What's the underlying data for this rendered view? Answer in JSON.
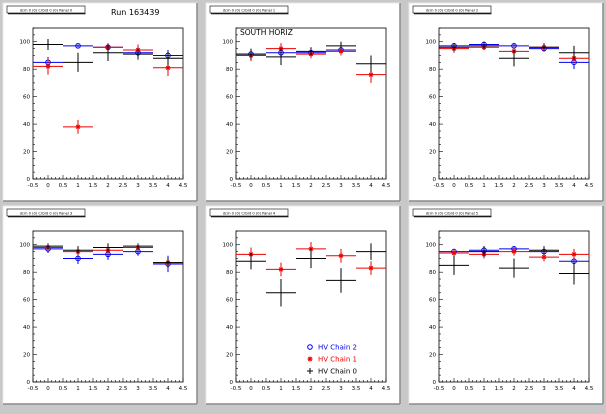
{
  "run_label": "Run 163439",
  "colors": {
    "chain2": "#0000ee",
    "chain1": "#ee0000",
    "chain0": "#000000",
    "frame_bg": "#ffffff",
    "canvas_bg": "#c8c8c8"
  },
  "legend": [
    {
      "label": "HV Chain 2",
      "marker": "circle",
      "color": "#0000ee"
    },
    {
      "label": "HV Chain 1",
      "marker": "star",
      "color": "#ee0000"
    },
    {
      "label": "HV Chain 0",
      "marker": "plus",
      "color": "#000000"
    }
  ],
  "chart_data": [
    {
      "type": "scatter",
      "title": "dcm 0 (0) Crbrd 0 (0) Panel 0",
      "annotation": "",
      "xlim": [
        -0.5,
        4.5
      ],
      "ylim": [
        0,
        110
      ],
      "x_ticks": [
        "-0.5",
        "0",
        "0.5",
        "1",
        "1.5",
        "2",
        "2.5",
        "3",
        "3.5",
        "4",
        "4.5"
      ],
      "y_ticks": [
        "0",
        "20",
        "40",
        "60",
        "80",
        "100"
      ],
      "series": [
        {
          "name": "HV Chain 2",
          "values": [
            {
              "x": 0,
              "y": 85,
              "xerr": 0.5,
              "yerr": 4
            },
            {
              "x": 1,
              "y": 97,
              "xerr": 0.5,
              "yerr": 1
            },
            {
              "x": 2,
              "y": 96,
              "xerr": 0.5,
              "yerr": 2
            },
            {
              "x": 3,
              "y": 92,
              "xerr": 0.5,
              "yerr": 3
            },
            {
              "x": 4,
              "y": 90,
              "xerr": 0.5,
              "yerr": 4
            }
          ]
        },
        {
          "name": "HV Chain 1",
          "values": [
            {
              "x": 0,
              "y": 82,
              "xerr": 0.5,
              "yerr": 6
            },
            {
              "x": 1,
              "y": 38,
              "xerr": 0.5,
              "yerr": 5
            },
            {
              "x": 2,
              "y": 96,
              "xerr": 0.5,
              "yerr": 3
            },
            {
              "x": 3,
              "y": 94,
              "xerr": 0.5,
              "yerr": 4
            },
            {
              "x": 4,
              "y": 81,
              "xerr": 0.5,
              "yerr": 6
            }
          ]
        },
        {
          "name": "HV Chain 0",
          "values": [
            {
              "x": 0,
              "y": 98,
              "xerr": 0.5,
              "yerr": 4
            },
            {
              "x": 1,
              "y": 85,
              "xerr": 0.5,
              "yerr": 7
            },
            {
              "x": 2,
              "y": 92,
              "xerr": 0.5,
              "yerr": 6
            },
            {
              "x": 3,
              "y": 91,
              "xerr": 0.5,
              "yerr": 4
            },
            {
              "x": 4,
              "y": 88,
              "xerr": 0.5,
              "yerr": 5
            }
          ]
        }
      ]
    },
    {
      "type": "scatter",
      "title": "dcm 0 (0) Crbrd 0 (0) Panel 1",
      "annotation": "SOUTH HORIZ",
      "xlim": [
        -0.5,
        4.5
      ],
      "ylim": [
        0,
        110
      ],
      "x_ticks": [
        "-0.5",
        "0",
        "0.5",
        "1",
        "1.5",
        "2",
        "2.5",
        "3",
        "3.5",
        "4",
        "4.5"
      ],
      "y_ticks": [
        "0",
        "20",
        "40",
        "60",
        "80",
        "100"
      ],
      "series": [
        {
          "name": "HV Chain 2",
          "values": [
            {
              "x": 0,
              "y": 91,
              "xerr": 0.5,
              "yerr": 2
            },
            {
              "x": 1,
              "y": 92,
              "xerr": 0.5,
              "yerr": 2
            },
            {
              "x": 2,
              "y": 92,
              "xerr": 0.5,
              "yerr": 2
            },
            {
              "x": 3,
              "y": 94,
              "xerr": 0.5,
              "yerr": 2
            }
          ]
        },
        {
          "name": "HV Chain 1",
          "values": [
            {
              "x": 0,
              "y": 90,
              "xerr": 0.5,
              "yerr": 4
            },
            {
              "x": 1,
              "y": 95,
              "xerr": 0.5,
              "yerr": 4
            },
            {
              "x": 2,
              "y": 91,
              "xerr": 0.5,
              "yerr": 3
            },
            {
              "x": 3,
              "y": 93,
              "xerr": 0.5,
              "yerr": 3
            },
            {
              "x": 4,
              "y": 76,
              "xerr": 0.5,
              "yerr": 6
            }
          ]
        },
        {
          "name": "HV Chain 0",
          "values": [
            {
              "x": 0,
              "y": 91,
              "xerr": 0.5,
              "yerr": 4
            },
            {
              "x": 1,
              "y": 89,
              "xerr": 0.5,
              "yerr": 6
            },
            {
              "x": 2,
              "y": 93,
              "xerr": 0.5,
              "yerr": 3
            },
            {
              "x": 3,
              "y": 97,
              "xerr": 0.5,
              "yerr": 3
            },
            {
              "x": 4,
              "y": 84,
              "xerr": 0.5,
              "yerr": 6
            }
          ]
        }
      ]
    },
    {
      "type": "scatter",
      "title": "dcm 0 (0) Crbrd 0 (0) Panel 2",
      "annotation": "",
      "xlim": [
        -0.5,
        4.5
      ],
      "ylim": [
        0,
        110
      ],
      "x_ticks": [
        "-0.5",
        "0",
        "0.5",
        "1",
        "1.5",
        "2",
        "2.5",
        "3",
        "3.5",
        "4",
        "4.5"
      ],
      "y_ticks": [
        "0",
        "20",
        "40",
        "60",
        "80",
        "100"
      ],
      "series": [
        {
          "name": "HV Chain 2",
          "values": [
            {
              "x": 0,
              "y": 97,
              "xerr": 0.5,
              "yerr": 2
            },
            {
              "x": 1,
              "y": 98,
              "xerr": 0.5,
              "yerr": 1
            },
            {
              "x": 2,
              "y": 97,
              "xerr": 0.5,
              "yerr": 2
            },
            {
              "x": 3,
              "y": 95,
              "xerr": 0.5,
              "yerr": 2
            },
            {
              "x": 4,
              "y": 85,
              "xerr": 0.5,
              "yerr": 5
            }
          ]
        },
        {
          "name": "HV Chain 1",
          "values": [
            {
              "x": 0,
              "y": 95,
              "xerr": 0.5,
              "yerr": 3
            },
            {
              "x": 1,
              "y": 96,
              "xerr": 0.5,
              "yerr": 2
            },
            {
              "x": 2,
              "y": 93,
              "xerr": 0.5,
              "yerr": 4
            },
            {
              "x": 3,
              "y": 96,
              "xerr": 0.5,
              "yerr": 2
            },
            {
              "x": 4,
              "y": 88,
              "xerr": 0.5,
              "yerr": 4
            }
          ]
        },
        {
          "name": "HV Chain 0",
          "values": [
            {
              "x": 0,
              "y": 96,
              "xerr": 0.5,
              "yerr": 3
            },
            {
              "x": 1,
              "y": 97,
              "xerr": 0.5,
              "yerr": 3
            },
            {
              "x": 2,
              "y": 88,
              "xerr": 0.5,
              "yerr": 6
            },
            {
              "x": 3,
              "y": 96,
              "xerr": 0.5,
              "yerr": 3
            },
            {
              "x": 4,
              "y": 92,
              "xerr": 0.5,
              "yerr": 5
            }
          ]
        }
      ]
    },
    {
      "type": "scatter",
      "title": "dcm 0 (0) Crbrd 0 (0) Panel 3",
      "annotation": "",
      "xlim": [
        -0.5,
        4.5
      ],
      "ylim": [
        0,
        110
      ],
      "x_ticks": [
        "-0.5",
        "0",
        "0.5",
        "1",
        "1.5",
        "2",
        "2.5",
        "3",
        "3.5",
        "4",
        "4.5"
      ],
      "y_ticks": [
        "0",
        "20",
        "40",
        "60",
        "80",
        "100"
      ],
      "series": [
        {
          "name": "HV Chain 2",
          "values": [
            {
              "x": 0,
              "y": 97,
              "xerr": 0.5,
              "yerr": 3
            },
            {
              "x": 1,
              "y": 90,
              "xerr": 0.5,
              "yerr": 4
            },
            {
              "x": 2,
              "y": 93,
              "xerr": 0.5,
              "yerr": 4
            },
            {
              "x": 3,
              "y": 95,
              "xerr": 0.5,
              "yerr": 3
            },
            {
              "x": 4,
              "y": 86,
              "xerr": 0.5,
              "yerr": 6
            }
          ]
        },
        {
          "name": "HV Chain 1",
          "values": [
            {
              "x": 0,
              "y": 98,
              "xerr": 0.5,
              "yerr": 2
            },
            {
              "x": 1,
              "y": 95,
              "xerr": 0.5,
              "yerr": 3
            },
            {
              "x": 2,
              "y": 96,
              "xerr": 0.5,
              "yerr": 3
            },
            {
              "x": 3,
              "y": 98,
              "xerr": 0.5,
              "yerr": 2
            },
            {
              "x": 4,
              "y": 87,
              "xerr": 0.5,
              "yerr": 4
            }
          ]
        },
        {
          "name": "HV Chain 0",
          "values": [
            {
              "x": 0,
              "y": 99,
              "xerr": 0.5,
              "yerr": 2
            },
            {
              "x": 1,
              "y": 96,
              "xerr": 0.5,
              "yerr": 3
            },
            {
              "x": 2,
              "y": 98,
              "xerr": 0.5,
              "yerr": 3
            },
            {
              "x": 3,
              "y": 99,
              "xerr": 0.5,
              "yerr": 2
            },
            {
              "x": 4,
              "y": 87,
              "xerr": 0.5,
              "yerr": 4
            }
          ]
        }
      ]
    },
    {
      "type": "scatter",
      "title": "dcm 0 (0) Crbrd 0 (0) Panel 4",
      "annotation": "",
      "xlim": [
        -0.5,
        4.5
      ],
      "ylim": [
        0,
        110
      ],
      "x_ticks": [
        "-0.5",
        "0",
        "0.5",
        "1",
        "1.5",
        "2",
        "2.5",
        "3",
        "3.5",
        "4",
        "4.5"
      ],
      "y_ticks": [
        "0",
        "20",
        "40",
        "60",
        "80",
        "100"
      ],
      "series": [
        {
          "name": "HV Chain 1",
          "values": [
            {
              "x": 0,
              "y": 93,
              "xerr": 0.5,
              "yerr": 5
            },
            {
              "x": 1,
              "y": 82,
              "xerr": 0.5,
              "yerr": 5
            },
            {
              "x": 2,
              "y": 97,
              "xerr": 0.5,
              "yerr": 5
            },
            {
              "x": 3,
              "y": 92,
              "xerr": 0.5,
              "yerr": 5
            },
            {
              "x": 4,
              "y": 83,
              "xerr": 0.5,
              "yerr": 5
            }
          ]
        },
        {
          "name": "HV Chain 0",
          "values": [
            {
              "x": 0,
              "y": 88,
              "xerr": 0.5,
              "yerr": 6
            },
            {
              "x": 1,
              "y": 65,
              "xerr": 0.5,
              "yerr": 10
            },
            {
              "x": 2,
              "y": 90,
              "xerr": 0.5,
              "yerr": 7
            },
            {
              "x": 3,
              "y": 74,
              "xerr": 0.5,
              "yerr": 9
            },
            {
              "x": 4,
              "y": 95,
              "xerr": 0.5,
              "yerr": 6
            }
          ]
        }
      ],
      "show_legend": true
    },
    {
      "type": "scatter",
      "title": "dcm 0 (0) Crbrd 0 (0) Panel 5",
      "annotation": "",
      "xlim": [
        -0.5,
        4.5
      ],
      "ylim": [
        0,
        110
      ],
      "x_ticks": [
        "-0.5",
        "0",
        "0.5",
        "1",
        "1.5",
        "2",
        "2.5",
        "3",
        "3.5",
        "4",
        "4.5"
      ],
      "y_ticks": [
        "0",
        "20",
        "40",
        "60",
        "80",
        "100"
      ],
      "series": [
        {
          "name": "HV Chain 2",
          "values": [
            {
              "x": 0,
              "y": 95,
              "xerr": 0.5,
              "yerr": 2
            },
            {
              "x": 1,
              "y": 96,
              "xerr": 0.5,
              "yerr": 3
            },
            {
              "x": 2,
              "y": 97,
              "xerr": 0.5,
              "yerr": 2
            },
            {
              "x": 3,
              "y": 95,
              "xerr": 0.5,
              "yerr": 3
            },
            {
              "x": 4,
              "y": 88,
              "xerr": 0.5,
              "yerr": 5
            }
          ]
        },
        {
          "name": "HV Chain 1",
          "values": [
            {
              "x": 0,
              "y": 94,
              "xerr": 0.5,
              "yerr": 3
            },
            {
              "x": 1,
              "y": 93,
              "xerr": 0.5,
              "yerr": 3
            },
            {
              "x": 2,
              "y": 95,
              "xerr": 0.5,
              "yerr": 3
            },
            {
              "x": 3,
              "y": 91,
              "xerr": 0.5,
              "yerr": 3
            },
            {
              "x": 4,
              "y": 93,
              "xerr": 0.5,
              "yerr": 4
            }
          ]
        },
        {
          "name": "HV Chain 0",
          "values": [
            {
              "x": 0,
              "y": 85,
              "xerr": 0.5,
              "yerr": 7
            },
            {
              "x": 1,
              "y": 95,
              "xerr": 0.5,
              "yerr": 4
            },
            {
              "x": 2,
              "y": 83,
              "xerr": 0.5,
              "yerr": 7
            },
            {
              "x": 3,
              "y": 96,
              "xerr": 0.5,
              "yerr": 3
            },
            {
              "x": 4,
              "y": 79,
              "xerr": 0.5,
              "yerr": 8
            }
          ]
        }
      ]
    }
  ]
}
